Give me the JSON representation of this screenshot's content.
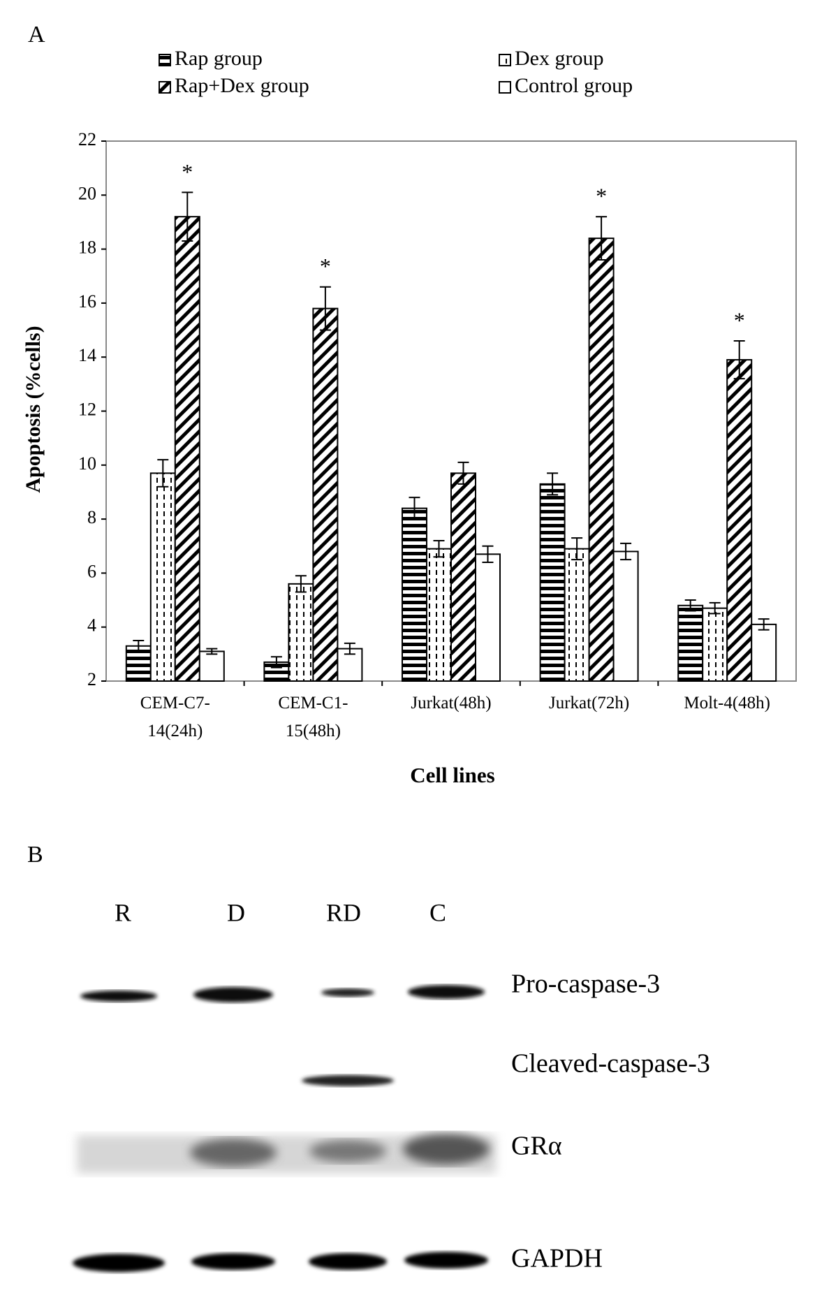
{
  "chart_data": {
    "type": "bar",
    "panel_label": "A",
    "x_label": "Cell lines",
    "y_label": "Apoptosis (%cells)",
    "categories": [
      "CEM-C7-14(24h)",
      "CEM-C1-15(48h)",
      "Jurkat(48h)",
      "Jurkat(72h)",
      "Molt-4(48h)"
    ],
    "series": [
      {
        "name": "Rap group",
        "color": "#000000",
        "pattern": "horizontal",
        "values": [
          3.3,
          2.7,
          8.4,
          9.3,
          4.8
        ],
        "errors": [
          0.2,
          0.2,
          0.4,
          0.4,
          0.2
        ]
      },
      {
        "name": "Dex group",
        "color": "#000000",
        "pattern": "dashed-vertical",
        "values": [
          9.7,
          5.6,
          6.9,
          6.9,
          4.7
        ],
        "errors": [
          0.5,
          0.3,
          0.3,
          0.4,
          0.2
        ]
      },
      {
        "name": "Rap+Dex group",
        "color": "#000000",
        "pattern": "diagonal",
        "values": [
          19.2,
          15.8,
          9.7,
          18.4,
          13.9
        ],
        "errors": [
          0.9,
          0.8,
          0.4,
          0.8,
          0.7
        ]
      },
      {
        "name": "Control group",
        "color": "#000000",
        "pattern": "none",
        "values": [
          3.1,
          3.2,
          6.7,
          6.8,
          4.1
        ],
        "errors": [
          0.1,
          0.2,
          0.3,
          0.3,
          0.2
        ]
      }
    ],
    "significance": [
      "*",
      "*",
      null,
      "*",
      "*"
    ],
    "ylim": [
      2,
      22
    ],
    "yticks": [
      2,
      4,
      6,
      8,
      10,
      12,
      14,
      16,
      18,
      20,
      22
    ],
    "grid": false
  },
  "blot": {
    "panel_label": "B",
    "lanes": [
      "R",
      "D",
      "RD",
      "C"
    ],
    "rows": [
      "Pro-caspase-3",
      "Cleaved-caspase-3",
      "GRα",
      "GAPDH"
    ]
  }
}
